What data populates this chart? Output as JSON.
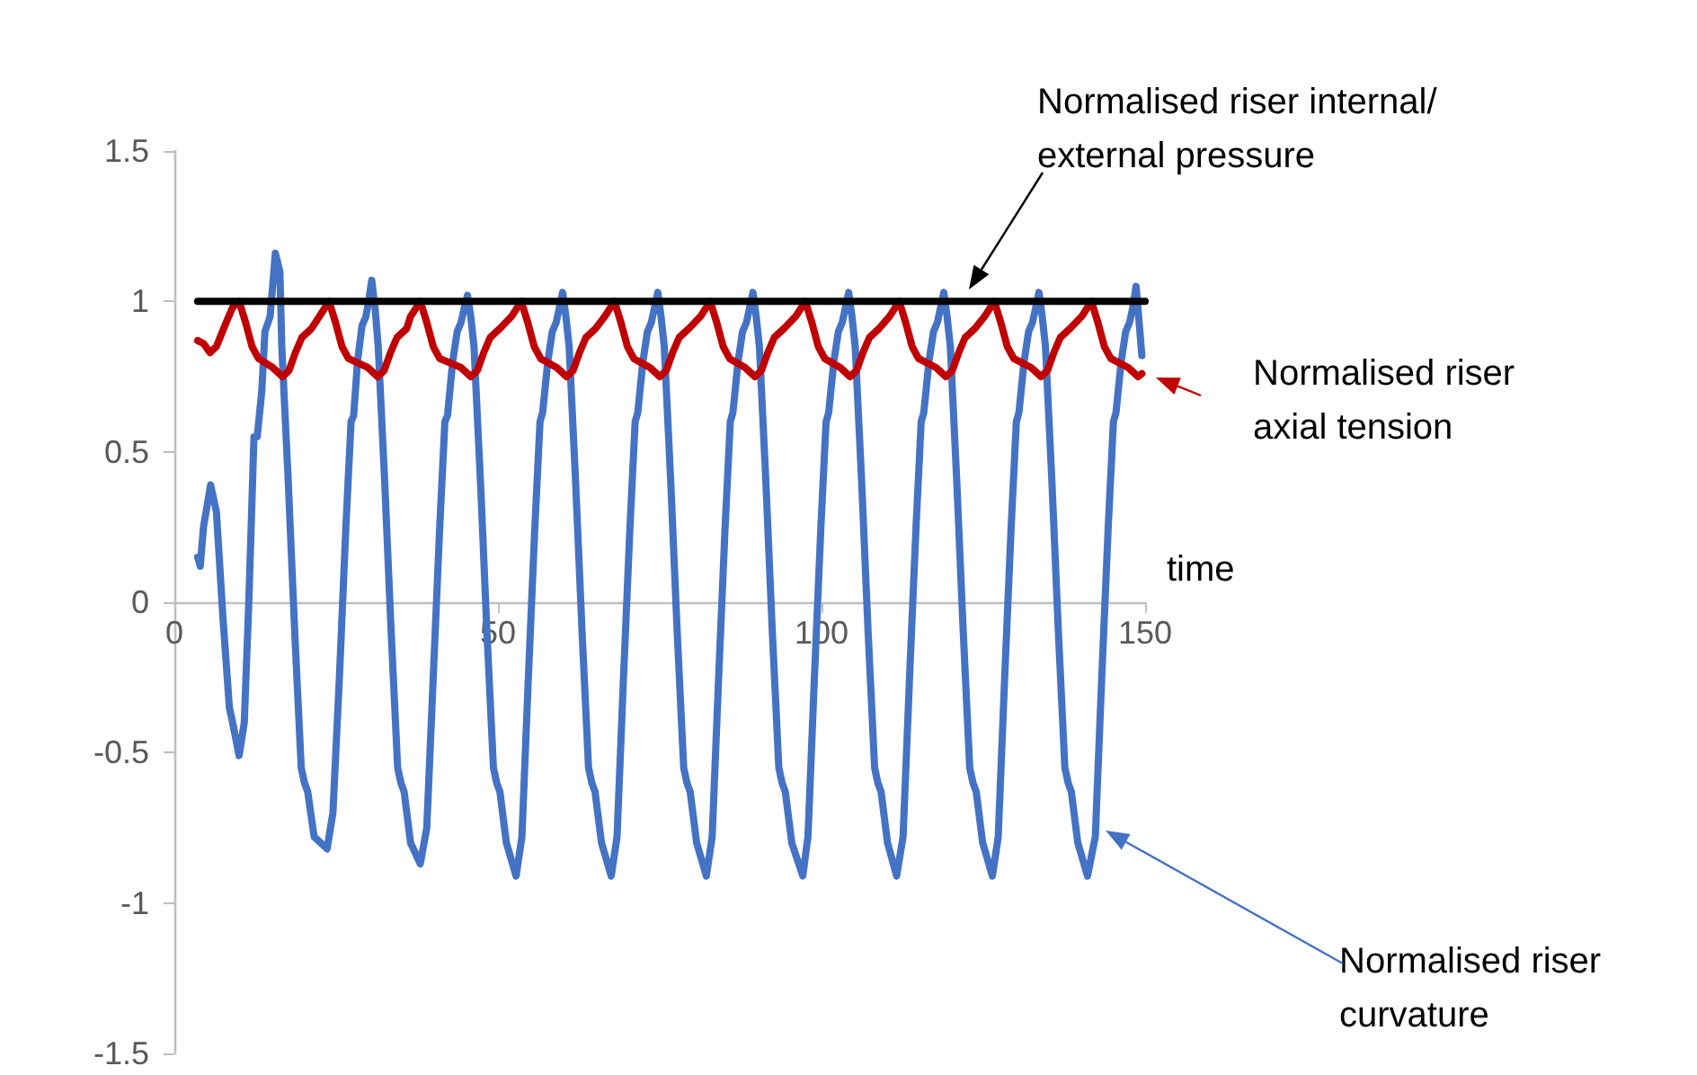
{
  "chart_data": {
    "type": "line",
    "xlabel": "time",
    "xlim": [
      0,
      150
    ],
    "xticks": [
      0,
      50,
      100,
      150
    ],
    "ylim": [
      -1.5,
      1.5
    ],
    "yticks": [
      -1.5,
      -1,
      -0.5,
      0,
      0.5,
      1,
      1.5
    ],
    "grid": false,
    "marker": "none",
    "line_style": "solid",
    "series": [
      {
        "color": "#4472c4",
        "x": [
          3.6,
          4,
          4.5,
          5.6,
          6.5,
          7.5,
          8.5,
          9,
          10,
          10.8,
          11.5,
          12.3,
          12.8,
          13.5,
          14,
          14.8,
          15.6,
          16.3,
          16.6,
          17.6,
          18.6,
          19.6,
          20.1,
          20.6,
          21.6,
          23.6,
          24.5,
          25.5,
          26.5,
          27.3,
          27.7,
          28.3,
          29,
          29.6,
          30,
          30.5,
          31,
          31.5,
          32.5,
          33.5,
          34.5,
          35,
          35.5,
          36.5,
          38,
          39,
          40,
          41,
          41.8,
          42.2,
          43,
          43.7,
          44.3,
          44.8,
          45.3,
          45.8,
          46.3,
          47.3,
          48.3,
          49.3,
          49.8,
          50.3,
          51.3,
          52.8,
          53.7,
          54.7,
          55.7,
          56.5,
          56.9,
          57.7,
          58.4,
          59,
          59.5,
          60,
          60.5,
          61,
          62,
          63,
          64,
          64.5,
          65,
          66,
          67.5,
          68.4,
          69.4,
          70.4,
          71.2,
          71.6,
          72.4,
          73.1,
          73.7,
          74.2,
          74.7,
          75.2,
          75.7,
          76.7,
          77.7,
          78.7,
          79.2,
          79.7,
          80.7,
          82.2,
          83.1,
          84.1,
          85.1,
          85.9,
          86.3,
          87.1,
          87.8,
          88.4,
          88.9,
          89.4,
          89.9,
          90.4,
          91.4,
          92.4,
          93.4,
          93.9,
          94.4,
          95.4,
          97.1,
          97.9,
          98.9,
          99.9,
          100.7,
          101.1,
          101.9,
          102.6,
          103.2,
          103.7,
          104.2,
          104.7,
          105.2,
          106.2,
          107.2,
          108.2,
          108.7,
          109.2,
          110.2,
          111.6,
          112.6,
          113.6,
          114.6,
          115.4,
          115.8,
          116.6,
          117.3,
          117.9,
          118.4,
          118.9,
          119.4,
          119.9,
          120.9,
          121.9,
          122.9,
          123.4,
          123.9,
          124.9,
          126.4,
          127.3,
          128.3,
          129.3,
          130.1,
          130.5,
          131.3,
          132,
          132.6,
          133.1,
          133.6,
          134.1,
          134.6,
          135.6,
          136.6,
          137.6,
          138.1,
          138.6,
          139.6,
          141.1,
          142.3,
          143.3,
          144.3,
          145.1,
          145.5,
          146.3,
          147,
          147.6,
          148.1,
          148.6,
          149,
          149.5
        ],
        "values": [
          0.15,
          0.12,
          0.25,
          0.39,
          0.3,
          -0.05,
          -0.35,
          -0.4,
          -0.51,
          -0.4,
          0,
          0.55,
          0.55,
          0.7,
          0.9,
          0.95,
          1.16,
          1.1,
          0.85,
          0.4,
          -0.1,
          -0.55,
          -0.6,
          -0.63,
          -0.78,
          -0.82,
          -0.7,
          -0.25,
          0.25,
          0.6,
          0.62,
          0.8,
          0.92,
          0.95,
          1,
          1.07,
          0.98,
          0.85,
          0.4,
          -0.1,
          -0.55,
          -0.6,
          -0.63,
          -0.8,
          -0.87,
          -0.75,
          -0.25,
          0.25,
          0.6,
          0.62,
          0.8,
          0.9,
          0.93,
          0.98,
          1.02,
          0.95,
          0.85,
          0.4,
          -0.1,
          -0.55,
          -0.6,
          -0.63,
          -0.8,
          -0.91,
          -0.78,
          -0.25,
          0.25,
          0.6,
          0.63,
          0.8,
          0.9,
          0.93,
          0.98,
          1.03,
          0.95,
          0.85,
          0.4,
          -0.1,
          -0.55,
          -0.6,
          -0.63,
          -0.8,
          -0.91,
          -0.78,
          -0.25,
          0.25,
          0.6,
          0.63,
          0.8,
          0.9,
          0.93,
          0.98,
          1.03,
          0.95,
          0.85,
          0.4,
          -0.1,
          -0.55,
          -0.6,
          -0.63,
          -0.8,
          -0.91,
          -0.78,
          -0.25,
          0.25,
          0.6,
          0.63,
          0.8,
          0.9,
          0.93,
          0.98,
          1.03,
          0.95,
          0.85,
          0.4,
          -0.1,
          -0.55,
          -0.6,
          -0.63,
          -0.8,
          -0.91,
          -0.78,
          -0.25,
          0.25,
          0.6,
          0.63,
          0.8,
          0.9,
          0.93,
          0.98,
          1.03,
          0.95,
          0.85,
          0.4,
          -0.1,
          -0.55,
          -0.6,
          -0.63,
          -0.8,
          -0.91,
          -0.78,
          -0.25,
          0.25,
          0.6,
          0.63,
          0.8,
          0.9,
          0.93,
          0.98,
          1.03,
          0.95,
          0.85,
          0.4,
          -0.1,
          -0.55,
          -0.6,
          -0.63,
          -0.8,
          -0.91,
          -0.78,
          -0.25,
          0.25,
          0.6,
          0.63,
          0.8,
          0.9,
          0.93,
          0.98,
          1.03,
          0.95,
          0.85,
          0.4,
          -0.1,
          -0.55,
          -0.6,
          -0.63,
          -0.8,
          -0.91,
          -0.78,
          -0.25,
          0.25,
          0.6,
          0.63,
          0.8,
          0.9,
          0.93,
          0.98,
          1.05,
          0.95,
          0.82
        ]
      },
      {
        "color": "#c00000",
        "x": [
          3.6,
          4.5,
          5.5,
          6.5,
          8,
          9,
          10,
          11,
          12,
          13,
          15.2,
          16.7,
          17.7,
          18.7,
          19.7,
          21.2,
          22.4,
          23.9,
          24.9,
          25.9,
          26.9,
          29.9,
          31.4,
          32.4,
          33.4,
          34.4,
          35.9,
          36.5,
          38,
          39,
          40,
          41,
          44.3,
          45.8,
          46.8,
          47.8,
          48.8,
          50.3,
          52.1,
          53.6,
          54.6,
          55.6,
          56.6,
          59.1,
          60.6,
          61.6,
          62.6,
          63.6,
          65.1,
          66.5,
          68,
          69,
          70,
          71,
          73.5,
          75,
          76,
          77,
          78,
          79.5,
          81.3,
          82.8,
          83.8,
          84.8,
          85.8,
          88.2,
          89.7,
          90.7,
          91.7,
          92.7,
          94.2,
          96,
          97.5,
          98.5,
          99.5,
          100.5,
          102.9,
          104.4,
          105.4,
          106.4,
          107.4,
          108.9,
          110.5,
          112,
          113,
          114,
          115,
          117.7,
          119.2,
          120.2,
          121.2,
          122.2,
          123.7,
          125.2,
          126.7,
          127.7,
          128.7,
          129.7,
          132.4,
          133.9,
          134.9,
          135.9,
          136.9,
          138.4,
          140.2,
          141.7,
          142.7,
          143.7,
          144.7,
          147.4,
          148.9,
          149.5
        ],
        "values": [
          0.87,
          0.86,
          0.83,
          0.85,
          0.93,
          0.98,
          1,
          0.93,
          0.85,
          0.81,
          0.78,
          0.75,
          0.77,
          0.83,
          0.88,
          0.91,
          0.95,
          1,
          0.93,
          0.85,
          0.81,
          0.78,
          0.75,
          0.77,
          0.83,
          0.88,
          0.91,
          0.95,
          1,
          0.93,
          0.85,
          0.81,
          0.78,
          0.75,
          0.77,
          0.83,
          0.88,
          0.91,
          0.95,
          1,
          0.93,
          0.85,
          0.81,
          0.78,
          0.75,
          0.77,
          0.83,
          0.88,
          0.91,
          0.95,
          1,
          0.93,
          0.85,
          0.81,
          0.78,
          0.75,
          0.77,
          0.83,
          0.88,
          0.91,
          0.95,
          1,
          0.93,
          0.85,
          0.81,
          0.78,
          0.75,
          0.77,
          0.83,
          0.88,
          0.91,
          0.95,
          1,
          0.93,
          0.85,
          0.81,
          0.78,
          0.75,
          0.77,
          0.83,
          0.88,
          0.91,
          0.95,
          1,
          0.93,
          0.85,
          0.81,
          0.78,
          0.75,
          0.77,
          0.83,
          0.88,
          0.91,
          0.95,
          1,
          0.93,
          0.85,
          0.81,
          0.78,
          0.75,
          0.77,
          0.83,
          0.88,
          0.91,
          0.95,
          1,
          0.93,
          0.85,
          0.81,
          0.78,
          0.75,
          0.76
        ]
      },
      {
        "color": "#000000",
        "x": [
          3.6,
          150
        ],
        "values": [
          1,
          1
        ]
      }
    ],
    "annotations": [
      "Normalised riser curvature",
      "Normalised riser axial tension",
      "Normalised riser internal/external pressure"
    ]
  }
}
